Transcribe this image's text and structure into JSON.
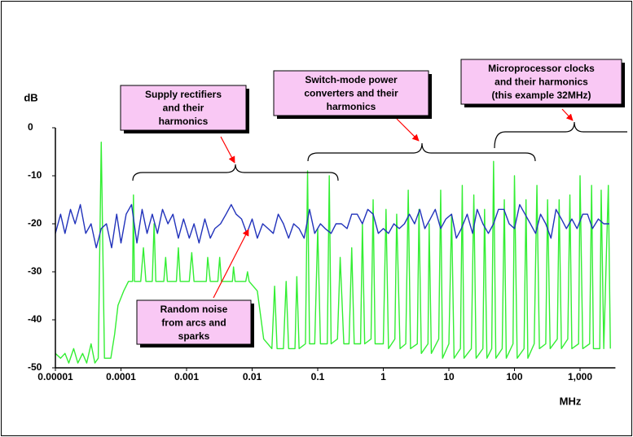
{
  "chart_data": {
    "type": "line",
    "xscale": "log",
    "xlabel": "MHz",
    "ylabel": "dB",
    "xlim": [
      1e-05,
      3000
    ],
    "ylim": [
      -50,
      0
    ],
    "xticks": [
      1e-05,
      0.0001,
      0.001,
      0.01,
      0.1,
      1,
      10,
      100,
      {
        "value": 1000,
        "label": "1,000"
      }
    ],
    "yticks": [
      0,
      -10,
      -20,
      -30,
      -40,
      -50
    ],
    "series": [
      {
        "color": "#33ee33",
        "x": [
          1e-05,
          1.2e-05,
          1.4e-05,
          1.6e-05,
          1.9e-05,
          2.2e-05,
          2.6e-05,
          3e-05,
          3.5e-05,
          4e-05,
          4.5e-05,
          5e-05,
          5.6e-05,
          7e-05,
          8e-05,
          9e-05,
          0.00011,
          0.00013,
          0.00015,
          0.000155,
          0.00016,
          0.0002,
          0.00022,
          0.00024,
          0.0003,
          0.00032,
          0.00034,
          0.00045,
          0.00048,
          0.00051,
          0.0007,
          0.00075,
          0.0008,
          0.0011,
          0.0012,
          0.0013,
          0.002,
          0.0021,
          0.0023,
          0.003,
          0.0032,
          0.0034,
          0.005,
          0.0052,
          0.0055,
          0.008,
          0.0085,
          0.009,
          0.012,
          0.015,
          0.02,
          0.022,
          0.024,
          0.03,
          0.033,
          0.036,
          0.045,
          0.048,
          0.052,
          0.065,
          0.07,
          0.075,
          0.09,
          0.1,
          0.11,
          0.14,
          0.15,
          0.16,
          0.2,
          0.22,
          0.25,
          0.3,
          0.33,
          0.36,
          0.45,
          0.48,
          0.52,
          0.65,
          0.7,
          0.75,
          1,
          1.1,
          1.2,
          1.5,
          1.6,
          1.8,
          2.2,
          2.4,
          2.6,
          3.3,
          3.5,
          3.8,
          4.8,
          5,
          5.4,
          7,
          7.5,
          8,
          10,
          11,
          12,
          15,
          16,
          17,
          22,
          24,
          26,
          33,
          35,
          38,
          45,
          48,
          52,
          65,
          70,
          75,
          95,
          100,
          110,
          140,
          150,
          160,
          200,
          220,
          240,
          300,
          320,
          350,
          450,
          480,
          520,
          650,
          700,
          750,
          950,
          1000,
          1100,
          1400,
          1500,
          1600,
          2000,
          2100,
          2300,
          2700,
          2900
        ],
        "values": [
          -47,
          -48,
          -47,
          -49,
          -46,
          -49,
          -47,
          -49,
          -45,
          -49,
          -48,
          -3,
          -48,
          -48,
          -43,
          -37,
          -34,
          -32,
          -32,
          -14,
          -32,
          -32,
          -25,
          -32,
          -32,
          -20,
          -32,
          -32,
          -27,
          -32,
          -32,
          -25,
          -32,
          -32,
          -26,
          -32,
          -32,
          -27,
          -32,
          -32,
          -27,
          -32,
          -32,
          -29,
          -32,
          -32,
          -30,
          -32,
          -34,
          -44,
          -46,
          -33,
          -46,
          -46,
          -32,
          -46,
          -46,
          -31,
          -46,
          -45,
          -9,
          -45,
          -45,
          -21,
          -45,
          -45,
          -10,
          -45,
          -44,
          -27,
          -45,
          -45,
          -25,
          -45,
          -45,
          -20,
          -45,
          -44,
          -15,
          -45,
          -45,
          -17,
          -46,
          -44,
          -18,
          -46,
          -45,
          -13,
          -46,
          -45,
          -17,
          -47,
          -45,
          -20,
          -47,
          -44,
          -13,
          -48,
          -45,
          -18,
          -48,
          -46,
          -12,
          -48,
          -46,
          -14,
          -48,
          -46,
          -17,
          -48,
          -46,
          -7,
          -48,
          -46,
          -15,
          -48,
          -45,
          -10,
          -48,
          -46,
          -15,
          -48,
          -45,
          -12,
          -46,
          -45,
          -15,
          -46,
          -44,
          -15,
          -46,
          -44,
          -14,
          -46,
          -45,
          -10,
          -46,
          -45,
          -12,
          -46,
          -46,
          -13,
          -46,
          -12,
          -46
        ]
      },
      {
        "color": "#2233bb",
        "x": [
          1e-05,
          1.2e-05,
          1.4e-05,
          1.7e-05,
          2e-05,
          2.4e-05,
          2.9e-05,
          3.5e-05,
          4.2e-05,
          5e-05,
          6e-05,
          7.2e-05,
          8.6e-05,
          0.0001,
          0.00012,
          0.000145,
          0.000175,
          0.00021,
          0.00025,
          0.0003,
          0.00036,
          0.00043,
          0.00052,
          0.00062,
          0.00075,
          0.0009,
          0.0011,
          0.0013,
          0.00155,
          0.0019,
          0.0023,
          0.0027,
          0.0033,
          0.004,
          0.0048,
          0.0057,
          0.0069,
          0.0083,
          0.01,
          0.012,
          0.0145,
          0.0175,
          0.021,
          0.025,
          0.03,
          0.036,
          0.043,
          0.052,
          0.062,
          0.075,
          0.09,
          0.11,
          0.13,
          0.16,
          0.19,
          0.23,
          0.28,
          0.33,
          0.4,
          0.48,
          0.58,
          0.7,
          0.84,
          1,
          1.2,
          1.45,
          1.75,
          2.1,
          2.5,
          3,
          3.6,
          4.3,
          5.2,
          6.2,
          7.5,
          9,
          11,
          13,
          15.5,
          19,
          23,
          27,
          33,
          40,
          48,
          57,
          69,
          83,
          100,
          120,
          145,
          175,
          210,
          250,
          300,
          360,
          430,
          520,
          620,
          750,
          900,
          1100,
          1300,
          1550,
          1900,
          2300,
          2800
        ],
        "values": [
          -22,
          -18,
          -22,
          -17,
          -20,
          -16,
          -22,
          -20,
          -25,
          -21,
          -20,
          -25,
          -18,
          -24,
          -18,
          -16,
          -24,
          -17,
          -22,
          -18,
          -22,
          -17,
          -20,
          -18,
          -23,
          -19,
          -23,
          -20,
          -24,
          -19,
          -23,
          -21,
          -20,
          -18,
          -16,
          -18,
          -19,
          -22,
          -19,
          -23,
          -20,
          -21,
          -22,
          -18,
          -20,
          -23,
          -20,
          -21,
          -23,
          -17,
          -22,
          -20,
          -21,
          -22,
          -20,
          -20,
          -21,
          -18,
          -18,
          -20,
          -17,
          -18,
          -22,
          -21,
          -22,
          -20,
          -21,
          -20,
          -18,
          -20,
          -17,
          -21,
          -19,
          -17,
          -21,
          -19,
          -18,
          -23,
          -21,
          -18,
          -22,
          -17,
          -20,
          -22,
          -20,
          -17,
          -17,
          -20,
          -21,
          -16,
          -18,
          -20,
          -22,
          -18,
          -20,
          -23,
          -17,
          -19,
          -21,
          -19,
          -21,
          -18,
          -18,
          -21,
          -19,
          -20,
          -20
        ]
      }
    ],
    "annotations": [
      {
        "lines": [
          "Supply rectifiers",
          "and their",
          "harmonics"
        ]
      },
      {
        "lines": [
          "Switch-mode power",
          "converters and their",
          "harmonics"
        ]
      },
      {
        "lines": [
          "Microprocessor clocks",
          "and their harmonics",
          "(this example 32MHz)"
        ]
      },
      {
        "lines": [
          "Random noise",
          "from arcs and",
          "sparks"
        ]
      }
    ]
  }
}
